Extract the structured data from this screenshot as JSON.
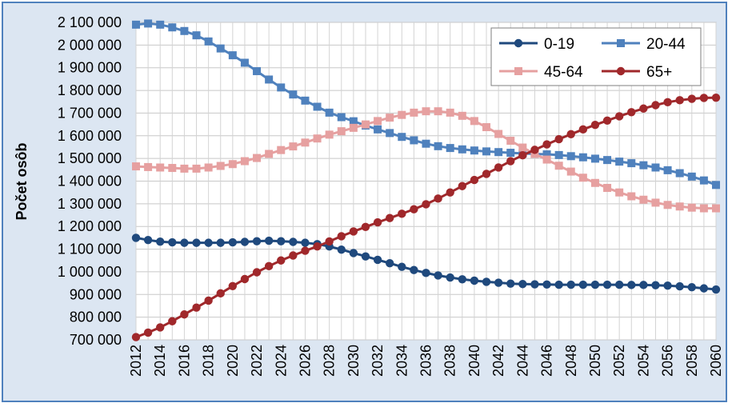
{
  "chart_data": {
    "type": "line",
    "title": "",
    "xlabel": "",
    "ylabel": "Počet osôb",
    "ylim": [
      700000,
      2100000
    ],
    "y_ticks": [
      "700 000",
      "800 000",
      "900 000",
      "1 000 000",
      "1 100 000",
      "1 200 000",
      "1 300 000",
      "1 400 000",
      "1 500 000",
      "1 600 000",
      "1 700 000",
      "1 800 000",
      "1 900 000",
      "2 000 000",
      "2 100 000"
    ],
    "x_tick_labels": [
      "2012",
      "2014",
      "2016",
      "2018",
      "2020",
      "2022",
      "2024",
      "2026",
      "2028",
      "2030",
      "2032",
      "2034",
      "2036",
      "2038",
      "2040",
      "2042",
      "2044",
      "2046",
      "2048",
      "2050",
      "2052",
      "2054",
      "2056",
      "2058",
      "2060"
    ],
    "x": [
      2012,
      2013,
      2014,
      2015,
      2016,
      2017,
      2018,
      2019,
      2020,
      2021,
      2022,
      2023,
      2024,
      2025,
      2026,
      2027,
      2028,
      2029,
      2030,
      2031,
      2032,
      2033,
      2034,
      2035,
      2036,
      2037,
      2038,
      2039,
      2040,
      2041,
      2042,
      2043,
      2044,
      2045,
      2046,
      2047,
      2048,
      2049,
      2050,
      2051,
      2052,
      2053,
      2054,
      2055,
      2056,
      2057,
      2058,
      2059,
      2060
    ],
    "grid": true,
    "legend_position": "top-right",
    "series": [
      {
        "name": "0-19",
        "color": "#1f497d",
        "marker": "circle",
        "values": [
          1150000,
          1140000,
          1133000,
          1130000,
          1128000,
          1128000,
          1128000,
          1128000,
          1130000,
          1132000,
          1135000,
          1137000,
          1135000,
          1132000,
          1128000,
          1122000,
          1112000,
          1098000,
          1083000,
          1068000,
          1053000,
          1038000,
          1022000,
          1008000,
          995000,
          984000,
          975000,
          967000,
          961000,
          956000,
          952000,
          948000,
          946000,
          945000,
          944000,
          943000,
          943000,
          943000,
          943000,
          943000,
          943000,
          942000,
          942000,
          941000,
          939000,
          936000,
          932000,
          927000,
          922000
        ]
      },
      {
        "name": "20-44",
        "color": "#4f81bd",
        "marker": "square",
        "values": [
          2090000,
          2095000,
          2090000,
          2078000,
          2062000,
          2043000,
          2016000,
          1985000,
          1955000,
          1922000,
          1885000,
          1848000,
          1813000,
          1782000,
          1755000,
          1728000,
          1702000,
          1682000,
          1664000,
          1645000,
          1628000,
          1612000,
          1595000,
          1580000,
          1565000,
          1554000,
          1546000,
          1540000,
          1535000,
          1531000,
          1528000,
          1525000,
          1522000,
          1520000,
          1518000,
          1515000,
          1510000,
          1505000,
          1499000,
          1493000,
          1486000,
          1479000,
          1470000,
          1460000,
          1448000,
          1435000,
          1420000,
          1403000,
          1383000
        ]
      },
      {
        "name": "45-64",
        "color": "#e6a0a0",
        "marker": "square",
        "values": [
          1465000,
          1462000,
          1460000,
          1458000,
          1455000,
          1455000,
          1460000,
          1467000,
          1475000,
          1488000,
          1502000,
          1520000,
          1537000,
          1553000,
          1570000,
          1588000,
          1605000,
          1620000,
          1635000,
          1650000,
          1665000,
          1680000,
          1692000,
          1702000,
          1708000,
          1708000,
          1702000,
          1688000,
          1665000,
          1638000,
          1608000,
          1578000,
          1548000,
          1520000,
          1495000,
          1468000,
          1442000,
          1415000,
          1392000,
          1370000,
          1350000,
          1333000,
          1318000,
          1305000,
          1295000,
          1288000,
          1283000,
          1280000,
          1280000
        ]
      },
      {
        "name": "65+",
        "color": "#a0282b",
        "marker": "circle",
        "values": [
          712000,
          732000,
          755000,
          782000,
          812000,
          842000,
          873000,
          905000,
          937000,
          968000,
          998000,
          1025000,
          1050000,
          1072000,
          1093000,
          1112000,
          1134000,
          1157000,
          1178000,
          1198000,
          1218000,
          1237000,
          1256000,
          1276000,
          1298000,
          1323000,
          1350000,
          1378000,
          1405000,
          1432000,
          1460000,
          1488000,
          1514000,
          1538000,
          1562000,
          1585000,
          1607000,
          1628000,
          1648000,
          1667000,
          1686000,
          1704000,
          1720000,
          1735000,
          1748000,
          1757000,
          1763000,
          1767000,
          1768000
        ]
      }
    ]
  }
}
